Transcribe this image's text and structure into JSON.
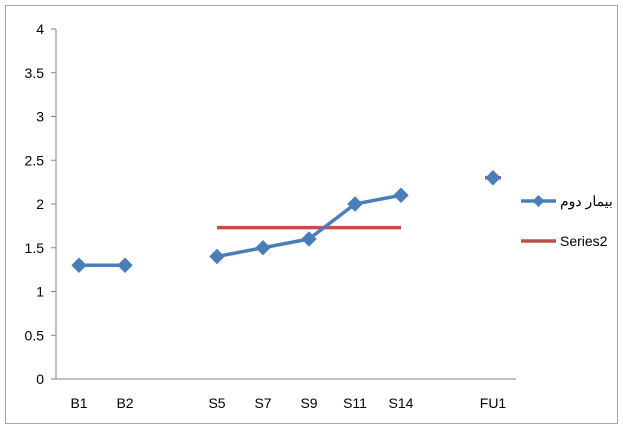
{
  "chart_data": {
    "type": "line",
    "title": "",
    "xlabel": "",
    "ylabel": "",
    "categories": [
      "B1",
      "B2",
      "",
      "S5",
      "S7",
      "S9",
      "S11",
      "S14",
      "",
      "FU1"
    ],
    "ylim": [
      0,
      4
    ],
    "yticks": [
      0,
      0.5,
      1,
      1.5,
      2,
      2.5,
      3,
      3.5,
      4
    ],
    "ytick_labels": [
      "0",
      "0.5",
      "1",
      "1.5",
      "2",
      "2.5",
      "3",
      "3.5",
      "4"
    ],
    "grid": false,
    "legend": "right",
    "series": [
      {
        "name": "بیمار دوم",
        "color": "#4a7ebb",
        "marker": "diamond",
        "values": [
          1.3,
          1.3,
          null,
          1.4,
          1.5,
          1.6,
          2.0,
          2.1,
          null,
          2.3
        ]
      },
      {
        "name": "Series2",
        "color": "#c0504d",
        "marker": "none",
        "values": [
          1.3,
          1.3,
          null,
          1.73,
          1.73,
          1.73,
          1.73,
          1.73,
          null,
          2.3
        ]
      }
    ]
  }
}
